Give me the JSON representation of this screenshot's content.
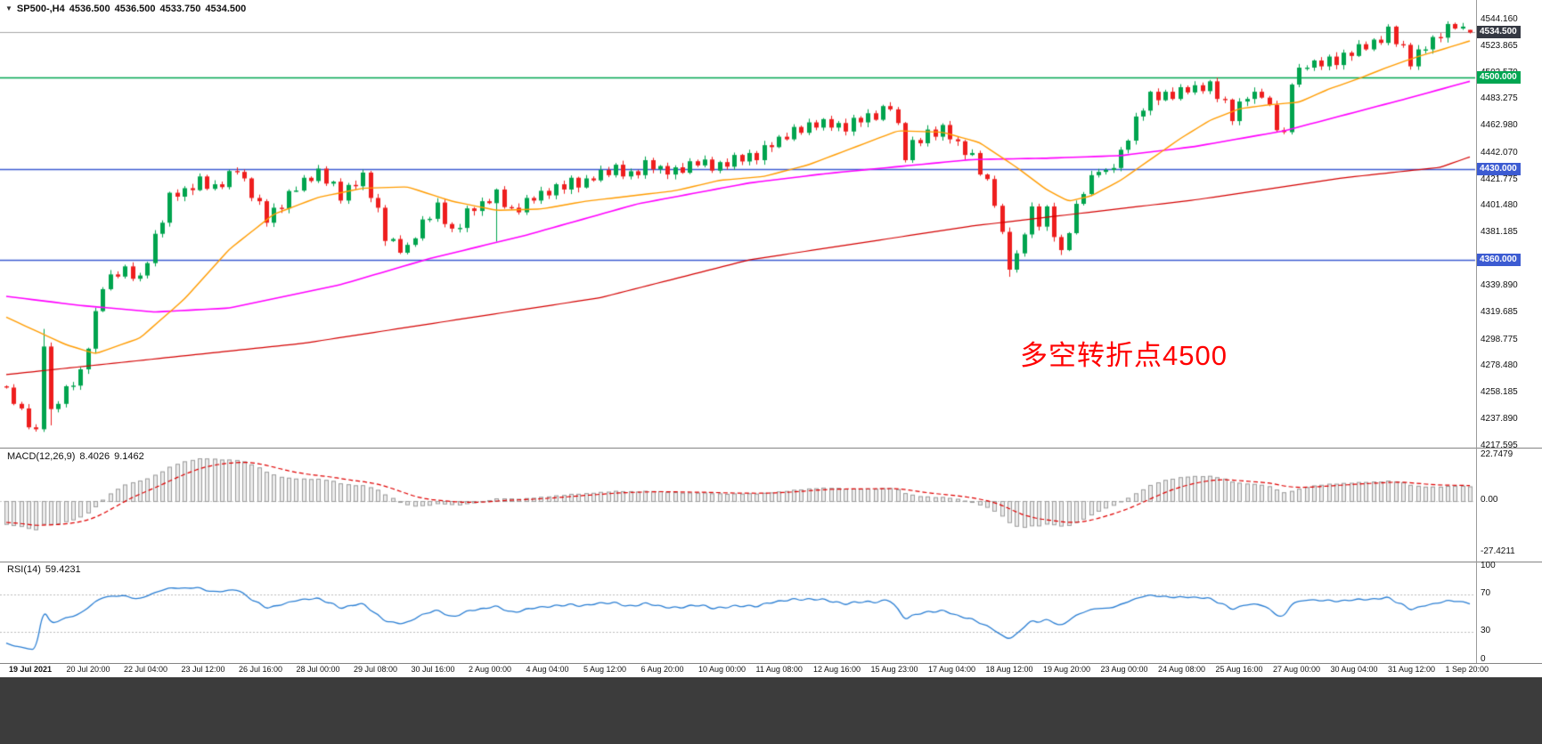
{
  "header": {
    "symbol_period": "SP500-,H4",
    "open": "4536.500",
    "high": "4536.500",
    "low": "4533.750",
    "close": "4534.500"
  },
  "annotation": {
    "text": "多空转折点4500",
    "color": "#ff0000"
  },
  "price_axis": {
    "ticks": [
      "4544.160",
      "4523.865",
      "4503.570",
      "4483.275",
      "4462.980",
      "4442.070",
      "4421.775",
      "4401.480",
      "4381.185",
      "4360.890",
      "4339.890",
      "4319.685",
      "4298.775",
      "4278.480",
      "4258.185",
      "4237.890",
      "4217.595"
    ],
    "bid": {
      "price": 4534.5,
      "label": "4534.500",
      "bg": "#343842"
    },
    "levels": [
      {
        "price": 4500,
        "label": "4500.000",
        "color": "#00a651"
      },
      {
        "price": 4430,
        "label": "4430.000",
        "color": "#3c5bd2"
      },
      {
        "price": 4360,
        "label": "4360.000",
        "color": "#3c5bd2"
      }
    ]
  },
  "macd_panel": {
    "label": "MACD(12,26,9)",
    "value_main": "8.4026",
    "value_signal": "9.1462",
    "scale": [
      "22.7479",
      "0.00",
      "-27.4211"
    ]
  },
  "rsi_panel": {
    "label": "RSI(14)",
    "value": "59.4231",
    "scale": [
      "100",
      "70",
      "30",
      "0"
    ],
    "levels": [
      70,
      30
    ]
  },
  "time_axis": {
    "labels": [
      "19 Jul 2021",
      "20 Jul 20:00",
      "22 Jul 04:00",
      "23 Jul 12:00",
      "26 Jul 16:00",
      "28 Jul 00:00",
      "29 Jul 08:00",
      "30 Jul 16:00",
      "2 Aug 00:00",
      "4 Aug 04:00",
      "5 Aug 12:00",
      "6 Aug 20:00",
      "10 Aug 00:00",
      "11 Aug 08:00",
      "12 Aug 16:00",
      "15 Aug 23:00",
      "17 Aug 04:00",
      "18 Aug 12:00",
      "19 Aug 20:00",
      "23 Aug 00:00",
      "24 Aug 08:00",
      "25 Aug 16:00",
      "27 Aug 00:00",
      "30 Aug 04:00",
      "31 Aug 12:00",
      "1 Sep 20:00"
    ]
  },
  "chart_data": {
    "type": "candlestick",
    "symbol": "SP500-",
    "timeframe": "H4",
    "visible_bars": 198,
    "prehistory_bars": 280,
    "last_ohlc": {
      "open": 4536.5,
      "high": 4536.5,
      "low": 4533.75,
      "close": 4534.5
    },
    "horizontal_levels": [
      4500,
      4430,
      4360
    ],
    "bid": 4534.5,
    "y_range_main": {
      "top_price": 4550,
      "bottom_price": 4214
    },
    "price_anchors": [
      [
        0,
        4262
      ],
      [
        2,
        4242
      ],
      [
        4,
        4228
      ],
      [
        5,
        4298
      ],
      [
        6,
        4242
      ],
      [
        8,
        4260
      ],
      [
        10,
        4272
      ],
      [
        13,
        4342
      ],
      [
        16,
        4352
      ],
      [
        18,
        4344
      ],
      [
        20,
        4378
      ],
      [
        22,
        4408
      ],
      [
        24,
        4412
      ],
      [
        26,
        4420
      ],
      [
        28,
        4416
      ],
      [
        31,
        4429
      ],
      [
        33,
        4410
      ],
      [
        35,
        4392
      ],
      [
        37,
        4404
      ],
      [
        40,
        4420
      ],
      [
        42,
        4426
      ],
      [
        44,
        4418
      ],
      [
        45,
        4410
      ],
      [
        47,
        4418
      ],
      [
        48,
        4424
      ],
      [
        50,
        4396
      ],
      [
        51,
        4378
      ],
      [
        53,
        4370
      ],
      [
        54,
        4368
      ],
      [
        56,
        4388
      ],
      [
        58,
        4400
      ],
      [
        60,
        4382
      ],
      [
        62,
        4396
      ],
      [
        64,
        4402
      ],
      [
        66,
        4410
      ],
      [
        68,
        4398
      ],
      [
        70,
        4404
      ],
      [
        72,
        4410
      ],
      [
        74,
        4414
      ],
      [
        76,
        4421
      ],
      [
        78,
        4419
      ],
      [
        80,
        4426
      ],
      [
        82,
        4429
      ],
      [
        84,
        4426
      ],
      [
        86,
        4433
      ],
      [
        88,
        4429
      ],
      [
        90,
        4427
      ],
      [
        93,
        4437
      ],
      [
        95,
        4430
      ],
      [
        97,
        4434
      ],
      [
        99,
        4439
      ],
      [
        101,
        4441
      ],
      [
        103,
        4448
      ],
      [
        105,
        4455
      ],
      [
        107,
        4461
      ],
      [
        109,
        4466
      ],
      [
        111,
        4463
      ],
      [
        113,
        4461
      ],
      [
        115,
        4469
      ],
      [
        117,
        4472
      ],
      [
        119,
        4477
      ],
      [
        120,
        4462
      ],
      [
        121,
        4439
      ],
      [
        122,
        4448
      ],
      [
        124,
        4458
      ],
      [
        126,
        4460
      ],
      [
        128,
        4448
      ],
      [
        130,
        4438
      ],
      [
        132,
        4420
      ],
      [
        133,
        4406
      ],
      [
        134,
        4378
      ],
      [
        135,
        4354
      ],
      [
        136,
        4362
      ],
      [
        137,
        4382
      ],
      [
        138,
        4397
      ],
      [
        139,
        4389
      ],
      [
        140,
        4399
      ],
      [
        141,
        4382
      ],
      [
        142,
        4364
      ],
      [
        143,
        4382
      ],
      [
        144,
        4400
      ],
      [
        145,
        4413
      ],
      [
        146,
        4421
      ],
      [
        147,
        4431
      ],
      [
        148,
        4427
      ],
      [
        149,
        4435
      ],
      [
        150,
        4441
      ],
      [
        151,
        4453
      ],
      [
        152,
        4467
      ],
      [
        153,
        4477
      ],
      [
        154,
        4485
      ],
      [
        156,
        4487
      ],
      [
        158,
        4489
      ],
      [
        160,
        4491
      ],
      [
        162,
        4493
      ],
      [
        164,
        4481
      ],
      [
        165,
        4471
      ],
      [
        167,
        4485
      ],
      [
        169,
        4487
      ],
      [
        171,
        4463
      ],
      [
        172,
        4456
      ],
      [
        173,
        4499
      ],
      [
        175,
        4509
      ],
      [
        177,
        4511
      ],
      [
        179,
        4513
      ],
      [
        181,
        4521
      ],
      [
        183,
        4523
      ],
      [
        185,
        4529
      ],
      [
        186,
        4535
      ],
      [
        188,
        4523
      ],
      [
        189,
        4513
      ],
      [
        191,
        4523
      ],
      [
        193,
        4533
      ],
      [
        195,
        4541
      ],
      [
        196,
        4537
      ],
      [
        197,
        4534.5
      ]
    ],
    "prehistory_anchors": [
      [
        0,
        4100
      ],
      [
        40,
        4140
      ],
      [
        80,
        4190
      ],
      [
        120,
        4245
      ],
      [
        160,
        4300
      ],
      [
        200,
        4348
      ],
      [
        235,
        4374
      ],
      [
        252,
        4346
      ],
      [
        266,
        4304
      ],
      [
        274,
        4280
      ],
      [
        279,
        4264
      ]
    ],
    "zigzag": [
      3,
      -2.5,
      4,
      -3.5,
      2,
      -4.5,
      3.5,
      -1.5
    ],
    "specials": {
      "5": {
        "high": 4307
      },
      "6": {
        "low": 4233
      },
      "66": {
        "low": 4374
      },
      "119": {
        "high": 4481
      },
      "135": {
        "low": 4347
      },
      "197": {
        "open": 4536.5,
        "high": 4536.5,
        "low": 4533.75
      }
    },
    "moving_averages": [
      {
        "name": "slow-ma",
        "color": "#d40000",
        "width": 1.2,
        "anchors": [
          [
            0,
            4272
          ],
          [
            40,
            4296
          ],
          [
            80,
            4331
          ],
          [
            100,
            4360
          ],
          [
            130,
            4386
          ],
          [
            160,
            4406
          ],
          [
            180,
            4423
          ],
          [
            193,
            4431
          ],
          [
            197,
            4439
          ]
        ]
      },
      {
        "name": "medium-ma",
        "color": "#ff00ff",
        "width": 1.6,
        "anchors": [
          [
            0,
            4332
          ],
          [
            10,
            4325
          ],
          [
            20,
            4320
          ],
          [
            30,
            4323
          ],
          [
            45,
            4341
          ],
          [
            57,
            4361
          ],
          [
            70,
            4379
          ],
          [
            85,
            4403
          ],
          [
            100,
            4419
          ],
          [
            110,
            4426
          ],
          [
            119,
            4431
          ],
          [
            130,
            4437
          ],
          [
            140,
            4438
          ],
          [
            150,
            4440
          ],
          [
            160,
            4447
          ],
          [
            172,
            4459
          ],
          [
            180,
            4471
          ],
          [
            188,
            4483
          ],
          [
            197,
            4497
          ]
        ]
      },
      {
        "name": "fast-ma",
        "color": "#ff9c00",
        "width": 1.4,
        "anchors": [
          [
            0,
            4316
          ],
          [
            8,
            4295
          ],
          [
            12,
            4288
          ],
          [
            18,
            4300
          ],
          [
            24,
            4330
          ],
          [
            30,
            4368
          ],
          [
            36,
            4395
          ],
          [
            42,
            4408
          ],
          [
            48,
            4415
          ],
          [
            54,
            4416
          ],
          [
            60,
            4405
          ],
          [
            66,
            4398
          ],
          [
            72,
            4399
          ],
          [
            78,
            4405
          ],
          [
            84,
            4409
          ],
          [
            90,
            4413
          ],
          [
            96,
            4421
          ],
          [
            102,
            4424
          ],
          [
            108,
            4433
          ],
          [
            114,
            4446
          ],
          [
            120,
            4459
          ],
          [
            126,
            4458
          ],
          [
            131,
            4450
          ],
          [
            136,
            4431
          ],
          [
            140,
            4414
          ],
          [
            143,
            4405
          ],
          [
            146,
            4409
          ],
          [
            150,
            4421
          ],
          [
            154,
            4437
          ],
          [
            158,
            4453
          ],
          [
            162,
            4467
          ],
          [
            166,
            4476
          ],
          [
            170,
            4479
          ],
          [
            174,
            4481
          ],
          [
            178,
            4491
          ],
          [
            182,
            4499
          ],
          [
            186,
            4508
          ],
          [
            190,
            4516
          ],
          [
            193,
            4521
          ],
          [
            197,
            4528
          ]
        ]
      }
    ],
    "indicators": {
      "macd": {
        "fast": 12,
        "slow": 26,
        "signal": 9,
        "current": 8.4026,
        "current_signal": 9.1462
      },
      "rsi": {
        "period": 14,
        "current": 59.4231
      }
    }
  },
  "colors": {
    "bull": "#00a44e",
    "bear": "#ee1e1e",
    "bid_line": "#a8a8a8",
    "macd_bar_fill": "#ececec",
    "macd_bar_stroke": "#9c9c9c",
    "macd_signal": "#e00000",
    "rsi_line": "#2b7fd4",
    "level_dotted": "#bdbdbd",
    "bottom_bar": "#3c3c3c"
  }
}
